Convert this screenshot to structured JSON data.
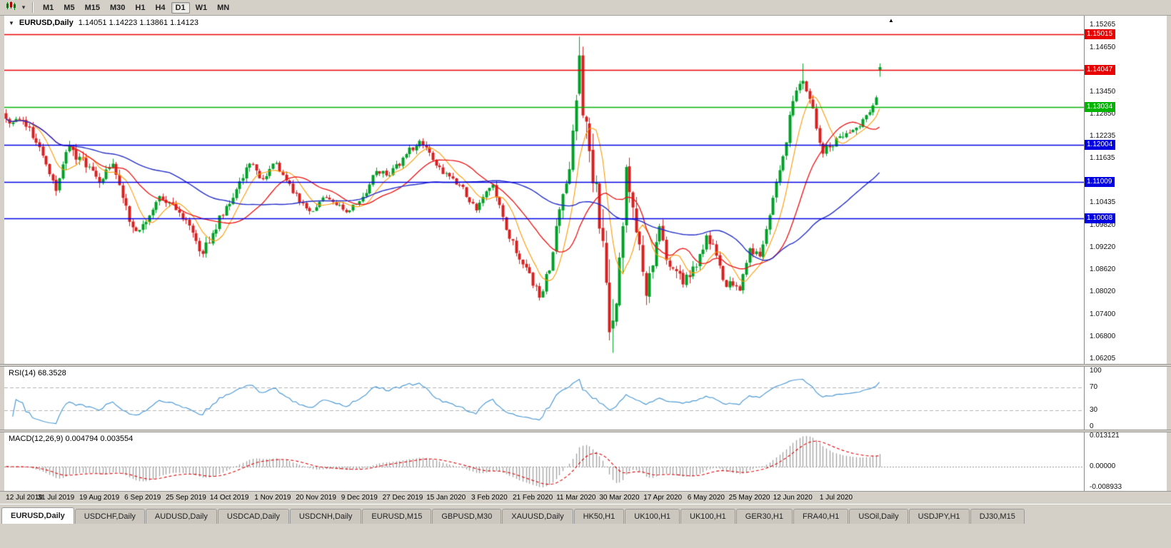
{
  "window": {
    "chrome_color": "#d4d0c8"
  },
  "toolbar": {
    "timeframes": [
      "M1",
      "M5",
      "M15",
      "M30",
      "H1",
      "H4",
      "D1",
      "W1",
      "MN"
    ],
    "active_timeframe": "D1",
    "dropdown_caret": "▾"
  },
  "chart_header": {
    "collapse_marker": "▼",
    "symbol": "EURUSD,Daily",
    "ohlc": "1.14051 1.14223 1.13861 1.14123",
    "shift_marker": "▲"
  },
  "price_axis": {
    "ticks": [
      "1.15265",
      "1.14650",
      "1.13450",
      "1.12850",
      "1.12235",
      "1.11635",
      "1.10435",
      "1.09820",
      "1.09220",
      "1.08620",
      "1.08020",
      "1.07400",
      "1.06800",
      "1.06205"
    ]
  },
  "rsi_panel": {
    "label": "RSI(14) 68.3528",
    "axis": [
      {
        "label": "100",
        "value": 100
      },
      {
        "label": "70",
        "value": 70
      },
      {
        "label": "30",
        "value": 30
      },
      {
        "label": "0",
        "value": 0
      }
    ]
  },
  "macd_panel": {
    "label": "MACD(12,26,9) 0.004794 0.003554",
    "axis": [
      {
        "label": "0.013121",
        "value": 0.013121
      },
      {
        "label": "0.00000",
        "value": 0
      },
      {
        "label": "-0.008933",
        "value": -0.008933
      }
    ]
  },
  "tabs": [
    {
      "label": "EURUSD,Daily",
      "active": true
    },
    {
      "label": "USDCHF,Daily",
      "active": false
    },
    {
      "label": "AUDUSD,Daily",
      "active": false
    },
    {
      "label": "USDCAD,Daily",
      "active": false
    },
    {
      "label": "USDCNH,Daily",
      "active": false
    },
    {
      "label": "EURUSD,M15",
      "active": false
    },
    {
      "label": "GBPUSD,M30",
      "active": false
    },
    {
      "label": "XAUUSD,Daily",
      "active": false
    },
    {
      "label": "HK50,H1",
      "active": false
    },
    {
      "label": "UK100,H1",
      "active": false
    },
    {
      "label": "UK100,H1",
      "active": false
    },
    {
      "label": "GER30,H1",
      "active": false
    },
    {
      "label": "FRA40,H1",
      "active": false
    },
    {
      "label": "USOil,Daily",
      "active": false
    },
    {
      "label": "USDJPY,H1",
      "active": false
    },
    {
      "label": "DJ30,M15",
      "active": false
    }
  ],
  "chart_data": {
    "type": "candlestick",
    "symbol": "EURUSD",
    "timeframe": "D1",
    "bar_count": 263,
    "price_range": {
      "top": 1.1552,
      "bottom": 1.0606
    },
    "colors": {
      "bull": "#00a028",
      "bear": "#d62020",
      "background": "#ffffff"
    },
    "x_labels": [
      {
        "bar": 2,
        "label": "12 Jul 2019"
      },
      {
        "bar": 15,
        "label": "31 Jul 2019"
      },
      {
        "bar": 28,
        "label": "19 Aug 2019"
      },
      {
        "bar": 41,
        "label": "6 Sep 2019"
      },
      {
        "bar": 54,
        "label": "25 Sep 2019"
      },
      {
        "bar": 67,
        "label": "14 Oct 2019"
      },
      {
        "bar": 80,
        "label": "1 Nov 2019"
      },
      {
        "bar": 93,
        "label": "20 Nov 2019"
      },
      {
        "bar": 106,
        "label": "9 Dec 2019"
      },
      {
        "bar": 119,
        "label": "27 Dec 2019"
      },
      {
        "bar": 132,
        "label": "15 Jan 2020"
      },
      {
        "bar": 145,
        "label": "3 Feb 2020"
      },
      {
        "bar": 158,
        "label": "21 Feb 2020"
      },
      {
        "bar": 171,
        "label": "11 Mar 2020"
      },
      {
        "bar": 184,
        "label": "30 Mar 2020"
      },
      {
        "bar": 197,
        "label": "17 Apr 2020"
      },
      {
        "bar": 210,
        "label": "6 May 2020"
      },
      {
        "bar": 223,
        "label": "25 May 2020"
      },
      {
        "bar": 236,
        "label": "12 Jun 2020"
      },
      {
        "bar": 249,
        "label": "1 Jul 2020"
      }
    ],
    "price_anchors": [
      [
        0,
        1.1272,
        0.003
      ],
      [
        5,
        1.1268,
        0.0028
      ],
      [
        9,
        1.1207,
        0.0028
      ],
      [
        12,
        1.1148,
        0.0028
      ],
      [
        15,
        1.1076,
        0.003
      ],
      [
        19,
        1.1198,
        0.004
      ],
      [
        24,
        1.114,
        0.003
      ],
      [
        28,
        1.1098,
        0.0028
      ],
      [
        32,
        1.115,
        0.0028
      ],
      [
        37,
        1.0992,
        0.0032
      ],
      [
        40,
        1.097,
        0.003
      ],
      [
        46,
        1.1062,
        0.0028
      ],
      [
        52,
        1.1017,
        0.0026
      ],
      [
        57,
        1.094,
        0.0028
      ],
      [
        59,
        1.0905,
        0.0036
      ],
      [
        66,
        1.1035,
        0.0028
      ],
      [
        73,
        1.115,
        0.0026
      ],
      [
        77,
        1.1108,
        0.0024
      ],
      [
        81,
        1.1152,
        0.0022
      ],
      [
        86,
        1.107,
        0.0022
      ],
      [
        91,
        1.1021,
        0.0022
      ],
      [
        96,
        1.1058,
        0.002
      ],
      [
        102,
        1.1018,
        0.002
      ],
      [
        107,
        1.106,
        0.0022
      ],
      [
        111,
        1.113,
        0.0024
      ],
      [
        115,
        1.1118,
        0.002
      ],
      [
        120,
        1.1176,
        0.002
      ],
      [
        124,
        1.1212,
        0.0022
      ],
      [
        128,
        1.116,
        0.0022
      ],
      [
        131,
        1.1122,
        0.002
      ],
      [
        136,
        1.1092,
        0.002
      ],
      [
        141,
        1.1023,
        0.0022
      ],
      [
        146,
        1.1093,
        0.0026
      ],
      [
        151,
        1.0946,
        0.0026
      ],
      [
        156,
        1.0868,
        0.0026
      ],
      [
        160,
        1.0786,
        0.003
      ],
      [
        163,
        1.086,
        0.0036
      ],
      [
        166,
        1.1026,
        0.0046
      ],
      [
        169,
        1.1135,
        0.006
      ],
      [
        172,
        1.1444,
        0.0085
      ],
      [
        175,
        1.1184,
        0.0105
      ],
      [
        177,
        1.11,
        0.011
      ],
      [
        179,
        1.094,
        0.011
      ],
      [
        181,
        1.0692,
        0.01
      ],
      [
        183,
        1.077,
        0.009
      ],
      [
        186,
        1.1141,
        0.008
      ],
      [
        188,
        1.1031,
        0.007
      ],
      [
        192,
        1.0791,
        0.0055
      ],
      [
        196,
        1.098,
        0.0048
      ],
      [
        199,
        1.087,
        0.0042
      ],
      [
        203,
        1.0822,
        0.0038
      ],
      [
        207,
        1.087,
        0.0034
      ],
      [
        210,
        1.0955,
        0.0032
      ],
      [
        213,
        1.09,
        0.003
      ],
      [
        215,
        1.0834,
        0.003
      ],
      [
        220,
        1.0805,
        0.0028
      ],
      [
        223,
        1.092,
        0.0026
      ],
      [
        226,
        1.0898,
        0.0026
      ],
      [
        229,
        1.101,
        0.0028
      ],
      [
        231,
        1.1101,
        0.003
      ],
      [
        233,
        1.117,
        0.0032
      ],
      [
        236,
        1.132,
        0.0034
      ],
      [
        239,
        1.1375,
        0.0036
      ],
      [
        242,
        1.13,
        0.0034
      ],
      [
        245,
        1.1177,
        0.0032
      ],
      [
        249,
        1.1219,
        0.0028
      ],
      [
        253,
        1.1234,
        0.0026
      ],
      [
        256,
        1.1251,
        0.0024
      ],
      [
        259,
        1.129,
        0.0024
      ],
      [
        261,
        1.133,
        0.0026
      ],
      [
        262,
        1.1412,
        0.0026
      ]
    ],
    "bar_overrides": {
      "160": {
        "l": 1.0778
      },
      "172": {
        "o": 1.134,
        "h": 1.1495,
        "l": 1.1335,
        "c": 1.1444
      },
      "173": {
        "o": 1.1444,
        "h": 1.1468,
        "l": 1.1274,
        "c": 1.1281
      },
      "181": {
        "h": 1.089,
        "l": 1.067,
        "c": 1.0692
      },
      "182": {
        "o": 1.0702,
        "h": 1.0782,
        "l": 1.0636,
        "c": 1.0724
      },
      "239": {
        "h": 1.1422
      },
      "262": {
        "o": 1.14051,
        "h": 1.14223,
        "l": 1.13861,
        "c": 1.14123
      }
    },
    "moving_averages": [
      {
        "period": 8,
        "color": "#ff9900",
        "width": 1.1
      },
      {
        "period": 20,
        "color": "#ee1111",
        "width": 1.3
      },
      {
        "period": 50,
        "color": "#2430c8",
        "width": 1.4
      }
    ],
    "horizontal_lines": [
      {
        "price": 1.15015,
        "color": "#e80000"
      },
      {
        "price": 1.14047,
        "color": "#e80000"
      },
      {
        "price": 1.13034,
        "color": "#00b400"
      },
      {
        "price": 1.12004,
        "color": "#0000e0"
      },
      {
        "price": 1.11009,
        "color": "#0000e0"
      },
      {
        "price": 1.10008,
        "color": "#0000e0"
      }
    ],
    "rsi": {
      "period": 14,
      "value": 68.3528,
      "line_color": "#4f9bd5",
      "levels": [
        70,
        30
      ],
      "level_color": "#b0b0b0"
    },
    "macd": {
      "fast": 12,
      "slow": 26,
      "signal_period": 9,
      "value": 0.004794,
      "signal_value": 0.003554,
      "axis_max": 0.013121,
      "axis_min": -0.008933,
      "histogram_color": "#a0a0a0",
      "signal_color": "#e00000",
      "zero_line_color": "#909090"
    }
  }
}
